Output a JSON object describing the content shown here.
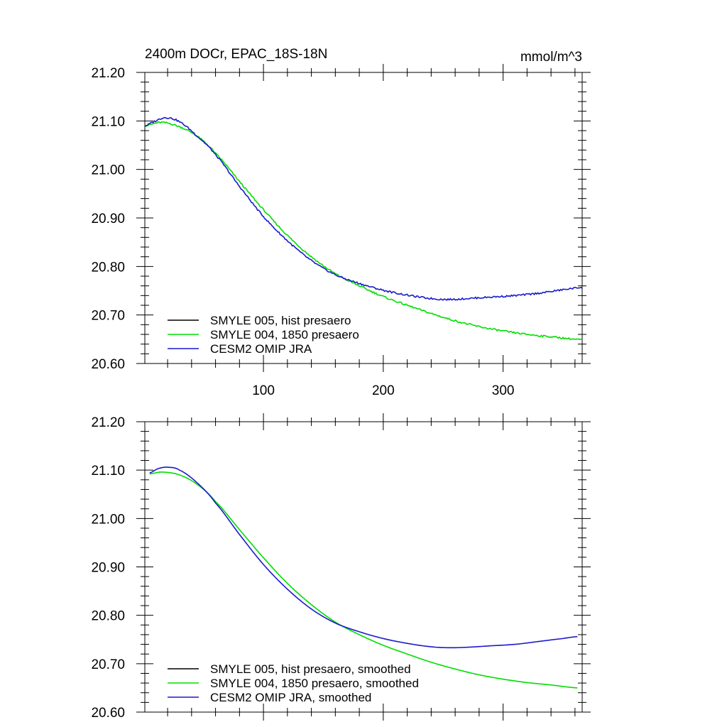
{
  "chart_data": [
    {
      "type": "line",
      "title_left": "2400m DOCr, EPAC_18S-18N",
      "title_right": "mmol/m^3",
      "xlim": [
        1,
        366
      ],
      "ylim": [
        20.6,
        21.2
      ],
      "y_ticks": [
        20.6,
        20.7,
        20.8,
        20.9,
        21.0,
        21.1,
        21.2
      ],
      "y_tick_labels": [
        "20.60",
        "20.70",
        "20.80",
        "20.90",
        "21.00",
        "21.10",
        "21.20"
      ],
      "x_ticks": [
        100,
        200,
        300
      ],
      "x_tick_labels": [
        "100",
        "200",
        "300"
      ],
      "show_x_labels": true,
      "noisy": true,
      "series": [
        {
          "name": "SMYLE 005, hist presaero",
          "color": "#000000",
          "x": [],
          "values": []
        },
        {
          "name": "SMYLE 004, 1850 presaero",
          "color": "#00dd00",
          "x": [
            1,
            15,
            30,
            45,
            60,
            80,
            100,
            120,
            140,
            160,
            180,
            200,
            220,
            240,
            260,
            280,
            300,
            320,
            340,
            366
          ],
          "values": [
            21.09,
            21.097,
            21.088,
            21.068,
            21.033,
            20.975,
            20.917,
            20.864,
            20.82,
            20.785,
            20.76,
            20.738,
            20.72,
            20.703,
            20.688,
            20.676,
            20.667,
            20.66,
            20.655,
            20.649
          ]
        },
        {
          "name": "CESM2 OMIP JRA",
          "color": "#1a1acc",
          "x": [
            1,
            10,
            18,
            30,
            45,
            60,
            80,
            100,
            120,
            140,
            160,
            180,
            200,
            220,
            240,
            255,
            270,
            290,
            310,
            330,
            350,
            366
          ],
          "values": [
            21.09,
            21.1,
            21.107,
            21.098,
            21.068,
            21.03,
            20.965,
            20.903,
            20.853,
            20.812,
            20.783,
            20.765,
            20.751,
            20.741,
            20.734,
            20.732,
            20.734,
            20.737,
            20.74,
            20.745,
            20.752,
            20.757
          ]
        }
      ]
    },
    {
      "type": "line",
      "xlim": [
        1,
        366
      ],
      "ylim": [
        20.6,
        21.2
      ],
      "y_ticks": [
        20.6,
        20.7,
        20.8,
        20.9,
        21.0,
        21.1,
        21.2
      ],
      "y_tick_labels": [
        "20.60",
        "20.70",
        "20.80",
        "20.90",
        "21.00",
        "21.10",
        "21.20"
      ],
      "x_ticks": [
        100,
        200,
        300
      ],
      "x_tick_labels": [],
      "show_x_labels": false,
      "noisy": false,
      "series": [
        {
          "name": "SMYLE 005, hist presaero, smoothed",
          "color": "#000000",
          "x": [],
          "values": []
        },
        {
          "name": "SMYLE 004, 1850 presaero, smoothed",
          "color": "#00dd00",
          "x": [
            5,
            15,
            30,
            45,
            60,
            80,
            100,
            120,
            140,
            160,
            180,
            200,
            220,
            240,
            260,
            280,
            300,
            320,
            340,
            362
          ],
          "values": [
            21.092,
            21.096,
            21.09,
            21.07,
            21.035,
            20.977,
            20.919,
            20.866,
            20.822,
            20.786,
            20.76,
            20.738,
            20.72,
            20.703,
            20.689,
            20.677,
            20.668,
            20.661,
            20.656,
            20.65
          ]
        },
        {
          "name": "CESM2 OMIP JRA, smoothed",
          "color": "#1a1acc",
          "x": [
            5,
            12,
            20,
            30,
            45,
            60,
            80,
            100,
            120,
            140,
            160,
            180,
            200,
            220,
            240,
            255,
            270,
            290,
            310,
            330,
            350,
            362
          ],
          "values": [
            21.094,
            21.103,
            21.106,
            21.1,
            21.073,
            21.032,
            20.967,
            20.905,
            20.854,
            20.813,
            20.784,
            20.766,
            20.752,
            20.742,
            20.735,
            20.733,
            20.734,
            20.737,
            20.74,
            20.746,
            20.752,
            20.756
          ]
        }
      ]
    }
  ]
}
